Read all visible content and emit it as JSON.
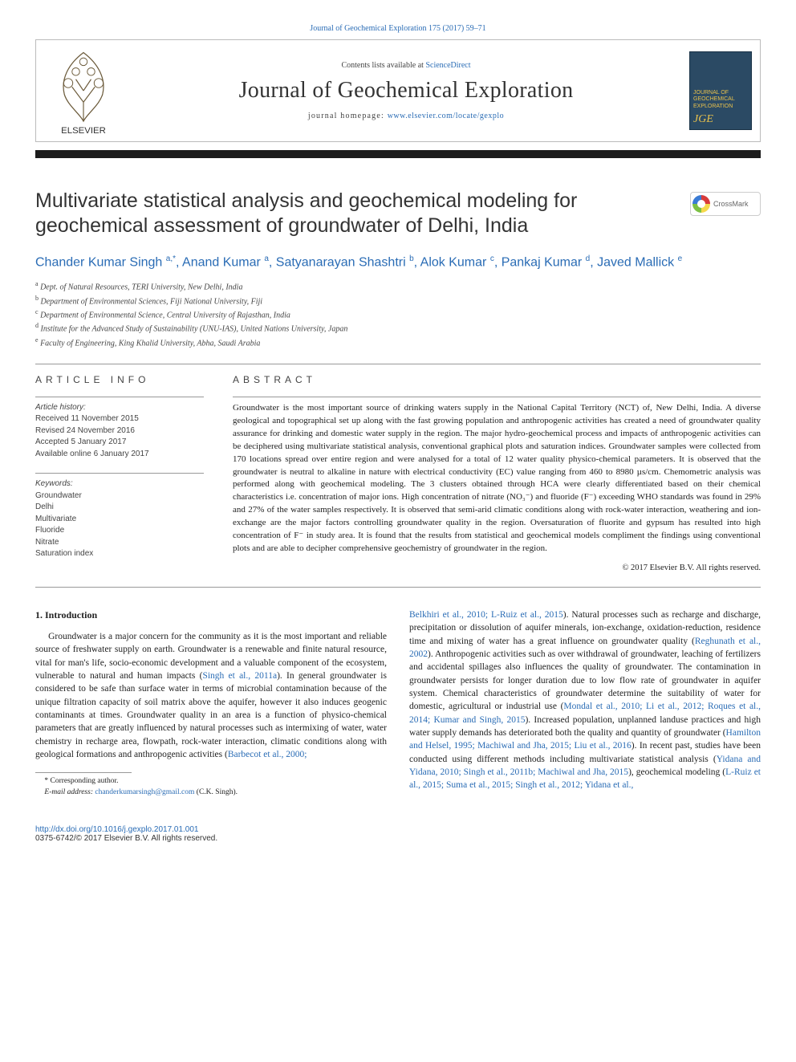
{
  "top_citation": {
    "prefix": "",
    "journal": "Journal of Geochemical Exploration",
    "text": "Journal of Geochemical Exploration 175 (2017) 59–71"
  },
  "header": {
    "contents_prefix": "Contents lists available at ",
    "contents_link": "ScienceDirect",
    "journal_title": "Journal of Geochemical Exploration",
    "homepage_label": "journal homepage: ",
    "homepage_url": "www.elsevier.com/locate/gexplo",
    "elsevier_name": "ELSEVIER",
    "journal_logo_abbr": "JGE",
    "journal_logo_lines": "JOURNAL OF\nGEOCHEMICAL\nEXPLORATION"
  },
  "crossmark_label": "CrossMark",
  "article": {
    "title": "Multivariate statistical analysis and geochemical modeling for geochemical assessment of groundwater of Delhi, India",
    "authors_html": "Chander Kumar Singh <span class='sup'>a,</span><span class='sup star'>*</span>, Anand Kumar <span class='sup'>a</span>, Satyanarayan Shashtri <span class='sup'>b</span>, Alok Kumar <span class='sup'>c</span>, Pankaj Kumar <span class='sup'>d</span>, Javed Mallick <span class='sup'>e</span>",
    "affiliations": [
      {
        "sup": "a",
        "text": "Dept. of Natural Resources, TERI University, New Delhi, India"
      },
      {
        "sup": "b",
        "text": "Department of Environmental Sciences, Fiji National University, Fiji"
      },
      {
        "sup": "c",
        "text": "Department of Environmental Science, Central University of Rajasthan, India"
      },
      {
        "sup": "d",
        "text": "Institute for the Advanced Study of Sustainability (UNU-IAS), United Nations University, Japan"
      },
      {
        "sup": "e",
        "text": "Faculty of Engineering, King Khalid University, Abha, Saudi Arabia"
      }
    ]
  },
  "info": {
    "section_label": "article info",
    "history_label": "Article history:",
    "received": "Received 11 November 2015",
    "revised": "Revised 24 November 2016",
    "accepted": "Accepted 5 January 2017",
    "online": "Available online 6 January 2017",
    "keywords_label": "Keywords:",
    "keywords": [
      "Groundwater",
      "Delhi",
      "Multivariate",
      "Fluoride",
      "Nitrate",
      "Saturation index"
    ]
  },
  "abstract": {
    "section_label": "abstract",
    "text": "Groundwater is the most important source of drinking waters supply in the National Capital Territory (NCT) of, New Delhi, India. A diverse geological and topographical set up along with the fast growing population and anthropogenic activities has created a need of groundwater quality assurance for drinking and domestic water supply in the region. The major hydro-geochemical process and impacts of anthropogenic activities can be deciphered using multivariate statistical analysis, conventional graphical plots and saturation indices. Groundwater samples were collected from 170 locations spread over entire region and were analysed for a total of 12 water quality physico-chemical parameters. It is observed that the groundwater is neutral to alkaline in nature with electrical conductivity (EC) value ranging from 460 to 8980 µs/cm. Chemometric analysis was performed along with geochemical modeling. The 3 clusters obtained through HCA were clearly differentiated based on their chemical characteristics i.e. concentration of major ions. High concentration of nitrate (NO₃⁻) and fluoride (F⁻) exceeding WHO standards was found in 29% and 27% of the water samples respectively. It is observed that semi-arid climatic conditions along with rock-water interaction, weathering and ion-exchange are the major factors controlling groundwater quality in the region. Oversaturation of fluorite and gypsum has resulted into high concentration of F⁻ in study area. It is found that the results from statistical and geochemical models compliment the findings using conventional plots and are able to decipher comprehensive geochemistry of groundwater in the region.",
    "copyright": "© 2017 Elsevier B.V. All rights reserved."
  },
  "body": {
    "section_number_title": "1. Introduction",
    "col1_para": "Groundwater is a major concern for the community as it is the most important and reliable source of freshwater supply on earth. Groundwater is a renewable and finite natural resource, vital for man's life, socio-economic development and a valuable component of the ecosystem, vulnerable to natural and human impacts (",
    "col1_cite1": "Singh et al., 2011a",
    "col1_para_b": "). In general groundwater is considered to be safe than surface water in terms of microbial contamination because of the unique filtration capacity of soil matrix above the aquifer, however it also induces geogenic contaminants at times. Groundwater quality in an area is a function of physico-chemical parameters that are greatly influenced by natural processes such as intermixing of water, water chemistry in recharge area, flowpath, rock-water interaction, climatic conditions along with geological formations and anthropogenic activities (",
    "col1_cite2": "Barbecot et al., 2000;",
    "col2_cite_top": "Belkhiri et al., 2010; L-Ruiz et al., 2015",
    "col2_para_a": "). Natural processes such as recharge and discharge, precipitation or dissolution of aquifer minerals, ion-exchange, oxidation-reduction, residence time and mixing of water has a great influence on groundwater quality (",
    "col2_cite_b": "Reghunath et al., 2002",
    "col2_para_b": "). Anthropogenic activities such as over withdrawal of groundwater, leaching of fertilizers and accidental spillages also influences the quality of groundwater. The contamination in groundwater persists for longer duration due to low flow rate of groundwater in aquifer system. Chemical characteristics of groundwater determine the suitability of water for domestic, agricultural or industrial use (",
    "col2_cite_c": "Mondal et al., 2010; Li et al., 2012; Roques et al., 2014; Kumar and Singh, 2015",
    "col2_para_c": "). Increased population, unplanned landuse practices and high water supply demands has deteriorated both the quality and quantity of groundwater (",
    "col2_cite_d": "Hamilton and Helsel, 1995; Machiwal and Jha, 2015; Liu et al., 2016",
    "col2_para_d": "). In recent past, studies have been conducted using different methods including multivariate statistical analysis (",
    "col2_cite_e": "Yidana and Yidana, 2010; Singh et al., 2011b; Machiwal and Jha, 2015",
    "col2_para_e": "), geochemical modeling (",
    "col2_cite_f": "L-Ruiz et al., 2015; Suma et al., 2015; Singh et al., 2012; Yidana et al.,"
  },
  "footnote": {
    "corresponding": "Corresponding author.",
    "email_label": "E-mail address:",
    "email": "chanderkumarsingh@gmail.com",
    "email_who": "(C.K. Singh)."
  },
  "footer": {
    "doi": "http://dx.doi.org/10.1016/j.gexplo.2017.01.001",
    "issn_rights": "0375-6742/© 2017 Elsevier B.V. All rights reserved."
  },
  "colors": {
    "link": "#2a6cb5",
    "text": "#222222",
    "border": "#999999",
    "bar": "#1c1c1c"
  }
}
